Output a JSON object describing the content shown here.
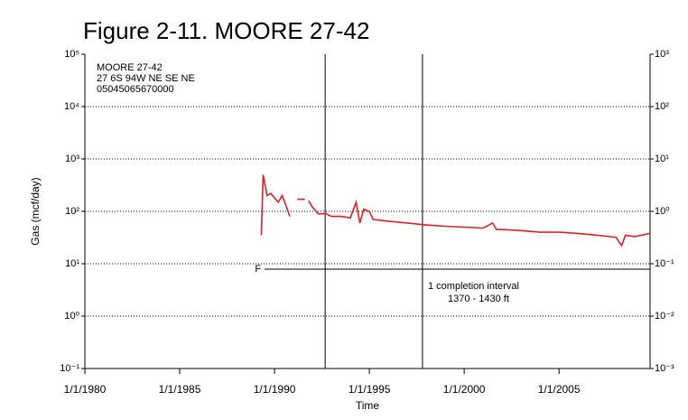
{
  "chart_data": {
    "type": "line",
    "title": "Figure 2-11.  MOORE 27-42",
    "xlabel": "Time",
    "ylabel": "Gas (mcf/day)",
    "log_y": true,
    "grid": true,
    "xlim": [
      1980,
      2009.8
    ],
    "xticks": [
      {
        "value": 1980,
        "label": "1/1/1980"
      },
      {
        "value": 1985,
        "label": "1/1/1985"
      },
      {
        "value": 1990,
        "label": "1/1/1990"
      },
      {
        "value": 1995,
        "label": "1/1/1995"
      },
      {
        "value": 2000,
        "label": "1/1/2000"
      },
      {
        "value": 2005,
        "label": "1/1/2005"
      }
    ],
    "ylim": [
      0.1,
      100000
    ],
    "yticks": [
      {
        "value": 0.1,
        "label": "10⁻¹"
      },
      {
        "value": 1,
        "label": "10⁰"
      },
      {
        "value": 10,
        "label": "10¹"
      },
      {
        "value": 100,
        "label": "10²"
      },
      {
        "value": 1000,
        "label": "10³"
      },
      {
        "value": 10000,
        "label": "10⁴"
      },
      {
        "value": 100000,
        "label": "10⁵"
      }
    ],
    "y2lim": [
      0.001,
      1000
    ],
    "y2ticks": [
      {
        "value": 0.001,
        "label": "10⁻³"
      },
      {
        "value": 0.01,
        "label": "10⁻²"
      },
      {
        "value": 0.1,
        "label": "10⁻¹"
      },
      {
        "value": 1,
        "label": "10⁰"
      },
      {
        "value": 10,
        "label": "10¹"
      },
      {
        "value": 100,
        "label": "10²"
      },
      {
        "value": 1000,
        "label": "10³"
      }
    ],
    "well_info": [
      "MOORE 27-42",
      "27 6S 94W NE SE NE",
      "05045065670000"
    ],
    "completion_note": [
      "1 completion interval",
      "1370 - 1430 ft"
    ],
    "vlines": [
      1992.67,
      1997.8
    ],
    "hline": {
      "label": "F",
      "value": 7.9,
      "x_start": 1989.48
    },
    "series": [
      {
        "name": "Gas",
        "color": "#e31e24",
        "x": [
          1989.3,
          1989.4,
          1989.6,
          1989.8,
          1990.0,
          1990.2,
          1990.4,
          1990.6,
          1990.8,
          null,
          1991.2,
          1991.6,
          null,
          1991.8,
          1992.0,
          1992.3,
          1992.7,
          1993.0,
          1993.5,
          1994.0,
          1994.3,
          1994.5,
          1994.7,
          1995.0,
          1995.2,
          1996.0,
          1997.0,
          1998.0,
          1999.0,
          2000.0,
          2001.0,
          2001.5,
          2001.7,
          2002.0,
          2003.0,
          2004.0,
          2005.0,
          2006.0,
          2007.0,
          2008.0,
          2008.3,
          2008.5,
          2009.0,
          2009.8
        ],
        "values": [
          35,
          500,
          200,
          220,
          180,
          150,
          200,
          130,
          80,
          null,
          170,
          170,
          null,
          160,
          120,
          90,
          90,
          80,
          80,
          75,
          150,
          60,
          110,
          100,
          70,
          65,
          60,
          55,
          52,
          50,
          48,
          60,
          45,
          45,
          43,
          40,
          40,
          38,
          35,
          32,
          22,
          35,
          33,
          38
        ]
      }
    ]
  }
}
